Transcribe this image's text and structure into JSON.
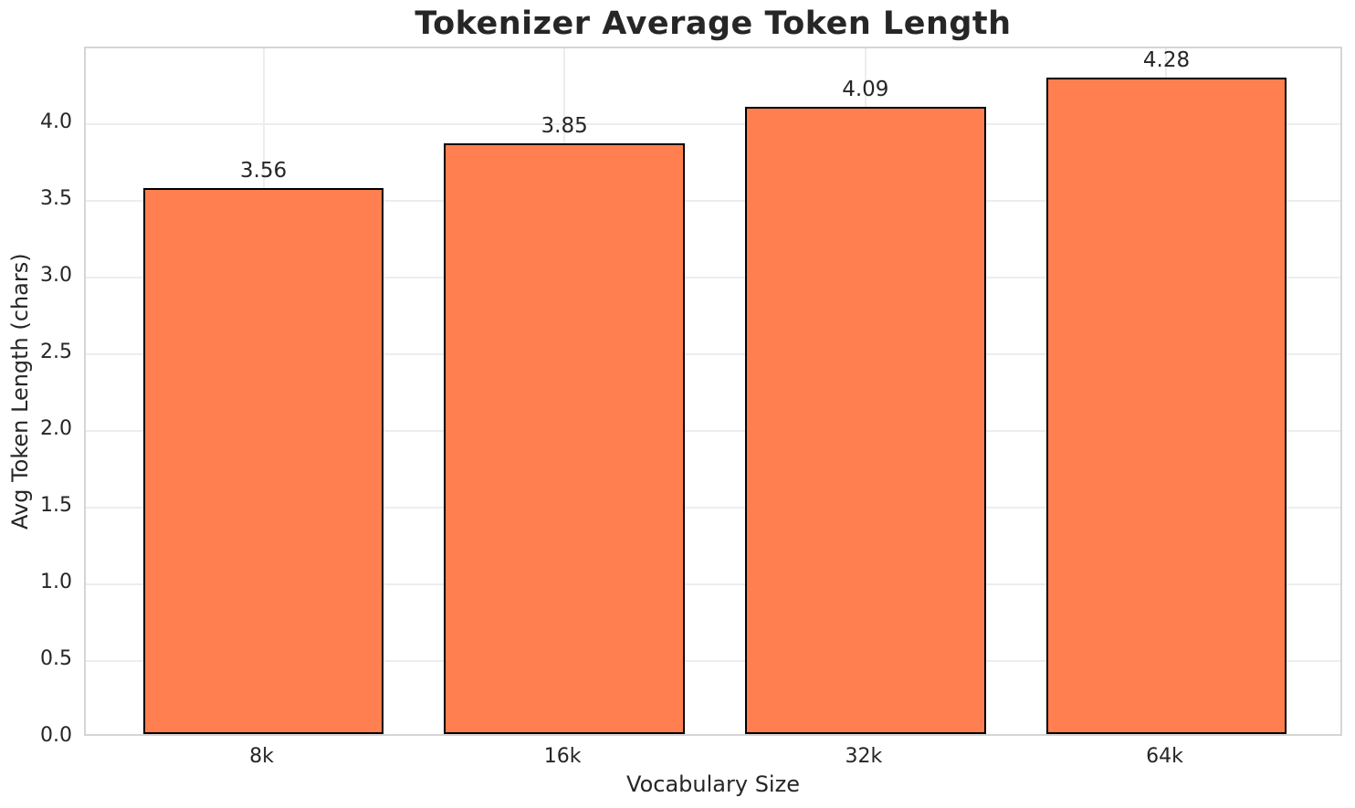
{
  "chart_data": {
    "type": "bar",
    "title": "Tokenizer Average Token Length",
    "xlabel": "Vocabulary Size",
    "ylabel": "Avg Token Length (chars)",
    "categories": [
      "8k",
      "16k",
      "32k",
      "64k"
    ],
    "values": [
      3.56,
      3.85,
      4.09,
      4.28
    ],
    "bar_labels": [
      "3.56",
      "3.85",
      "4.09",
      "4.28"
    ],
    "ylim": [
      0,
      4.494
    ],
    "yticks": [
      0,
      0.5,
      1,
      1.5,
      2,
      2.5,
      3,
      3.5,
      4
    ],
    "ytick_labels": [
      "0.0",
      "0.5",
      "1.0",
      "1.5",
      "2.0",
      "2.5",
      "3.0",
      "3.5",
      "4.0"
    ],
    "grid": true,
    "legend": null,
    "colors": {
      "bar_fill": "#FF7F50",
      "bar_edge": "#000000",
      "grid": "#EDEDED",
      "spine": "#D5D5D5",
      "text": "#262626",
      "background": "#FFFFFF"
    }
  }
}
